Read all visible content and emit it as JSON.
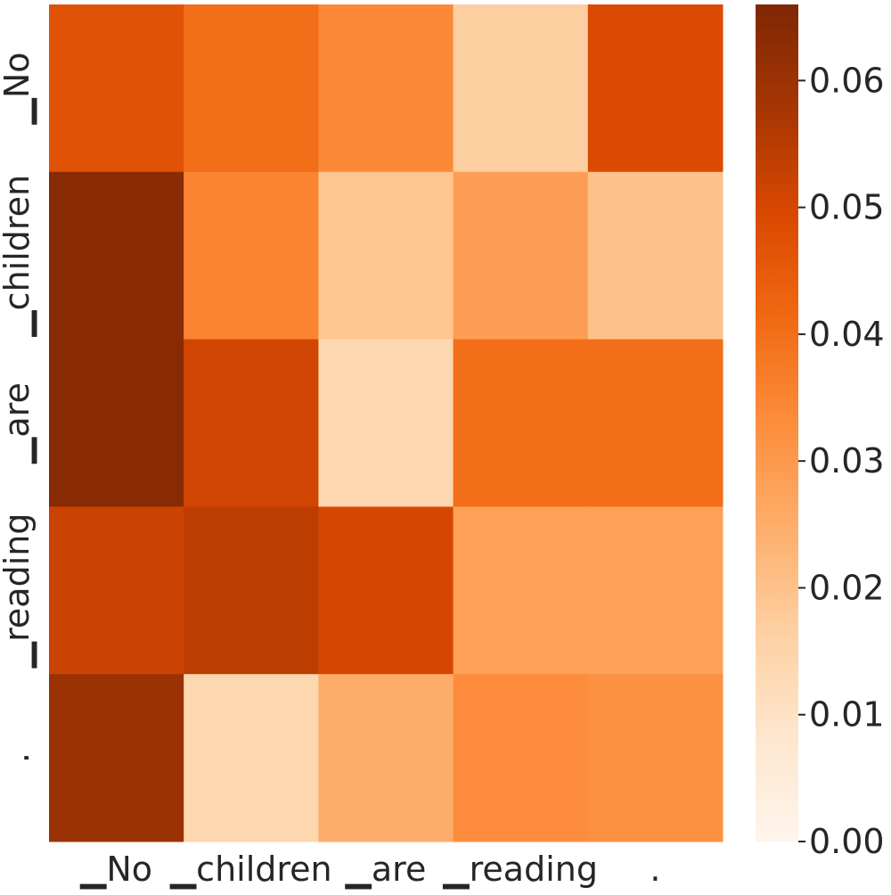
{
  "chart_data": {
    "type": "heatmap",
    "title": "",
    "xlabel": "",
    "ylabel": "",
    "x_tick_labels": [
      "▁No",
      "▁children",
      "▁are",
      "▁reading",
      "."
    ],
    "y_tick_labels": [
      "▁No",
      "▁children",
      "▁are",
      "▁reading",
      "."
    ],
    "values": [
      [
        0.047,
        0.04,
        0.034,
        0.017,
        0.049
      ],
      [
        0.064,
        0.035,
        0.019,
        0.029,
        0.02
      ],
      [
        0.064,
        0.051,
        0.014,
        0.04,
        0.04
      ],
      [
        0.052,
        0.054,
        0.05,
        0.028,
        0.028
      ],
      [
        0.06,
        0.014,
        0.025,
        0.033,
        0.032
      ]
    ],
    "colormap": "Oranges",
    "colorbar": {
      "min": 0.0,
      "max": 0.066,
      "ticks": [
        0.0,
        0.01,
        0.02,
        0.03,
        0.04,
        0.05,
        0.06
      ],
      "tick_labels": [
        "0.00",
        "0.01",
        "0.02",
        "0.03",
        "0.04",
        "0.05",
        "0.06"
      ]
    },
    "grid": false,
    "legend": "colorbar-right"
  }
}
